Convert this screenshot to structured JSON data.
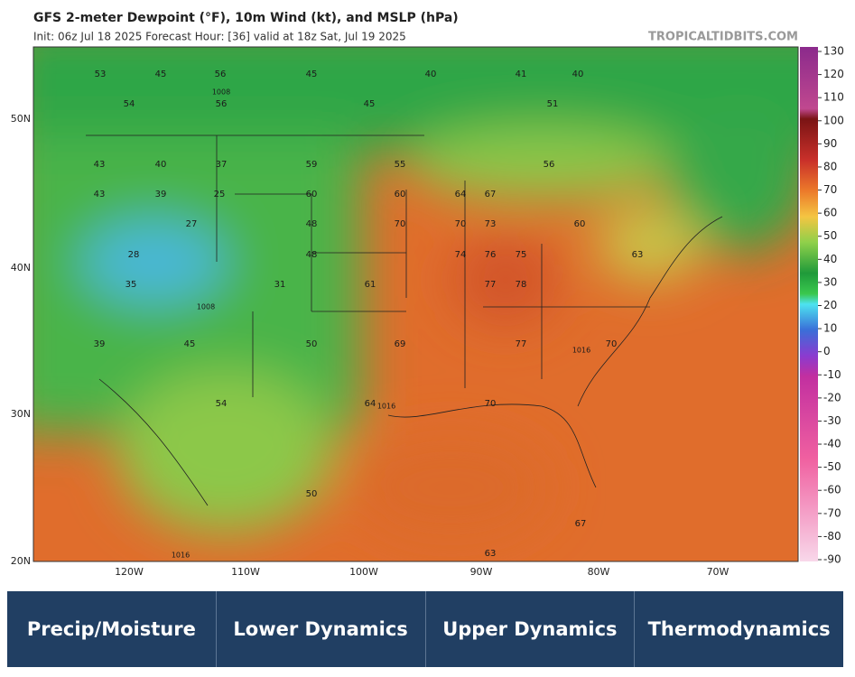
{
  "header": {
    "title": "GFS 2-meter Dewpoint (°F), 10m Wind (kt), and MSLP (hPa)",
    "subtitle": "Init: 06z Jul 18 2025   Forecast Hour: [36]   valid at 18z Sat, Jul 19 2025",
    "watermark": "TROPICALTIDBITS.COM"
  },
  "map": {
    "lat_labels": [
      "50N",
      "40N",
      "30N",
      "20N"
    ],
    "lon_labels": [
      "120W",
      "110W",
      "100W",
      "90W",
      "80W",
      "70W"
    ],
    "dewpoint_labels": [
      53,
      45,
      56,
      45,
      40,
      41,
      40,
      54,
      56,
      45,
      51,
      43,
      40,
      37,
      59,
      55,
      56,
      43,
      39,
      25,
      60,
      60,
      64,
      67,
      27,
      48,
      70,
      70,
      73,
      60,
      28,
      48,
      74,
      76,
      75,
      63,
      35,
      31,
      61,
      77,
      78,
      39,
      45,
      50,
      69,
      77,
      70,
      54,
      64,
      70,
      50,
      63,
      67
    ],
    "pressure_labels": [
      "1008",
      "1008",
      "1016",
      "1016",
      "1016"
    ]
  },
  "colorbar": {
    "ticks": [
      130,
      120,
      110,
      100,
      90,
      80,
      70,
      60,
      50,
      40,
      30,
      20,
      10,
      0,
      -10,
      -20,
      -30,
      -40,
      -50,
      -60,
      -70,
      -80,
      -90
    ]
  },
  "tabs": [
    "Precip/Moisture",
    "Lower Dynamics",
    "Upper Dynamics",
    "Thermodynamics"
  ]
}
